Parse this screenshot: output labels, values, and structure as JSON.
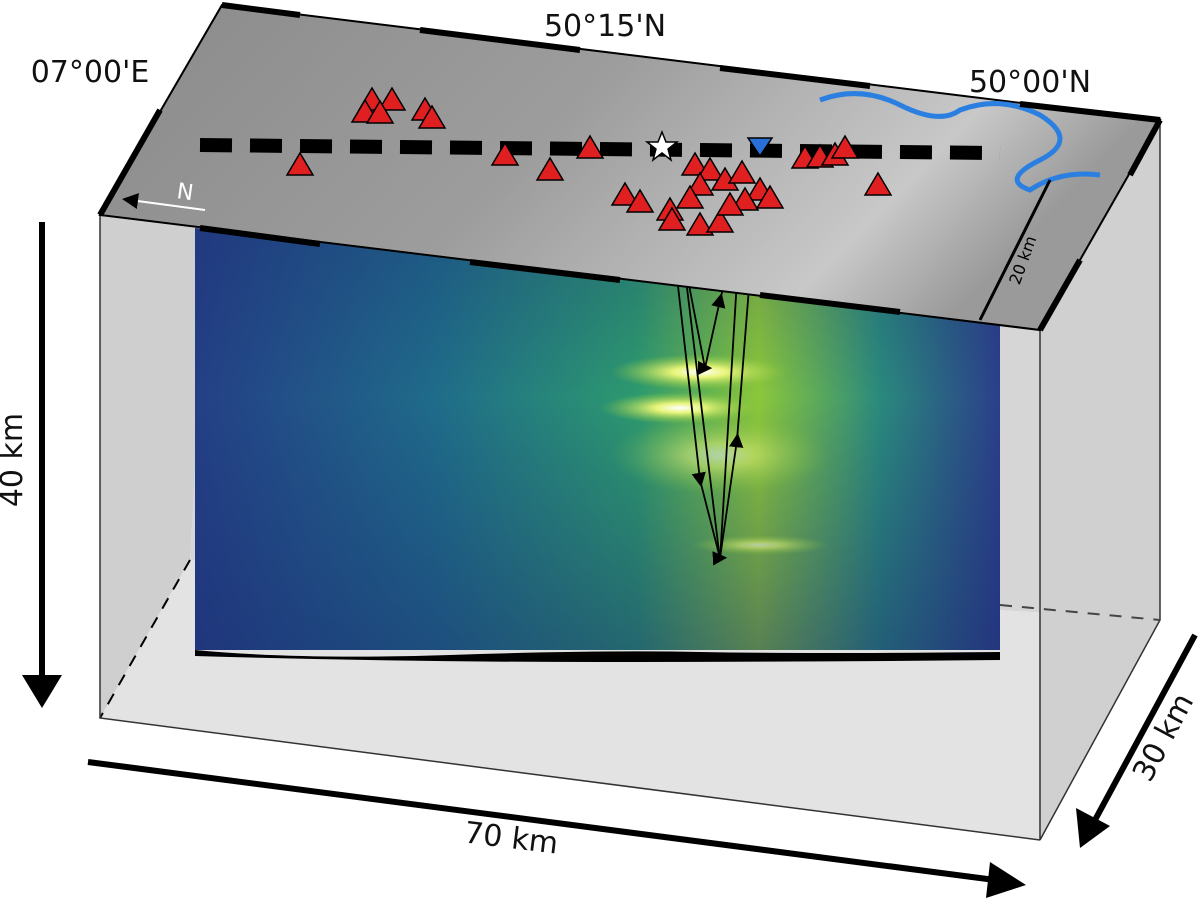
{
  "labels": {
    "latitude_north": "50°15'N",
    "longitude": "07°00'E",
    "latitude_south": "50°00'N",
    "north_arrow": "N",
    "map_scale": "20 km",
    "depth": "40 km",
    "length": "70 km",
    "width": "30 km"
  }
}
